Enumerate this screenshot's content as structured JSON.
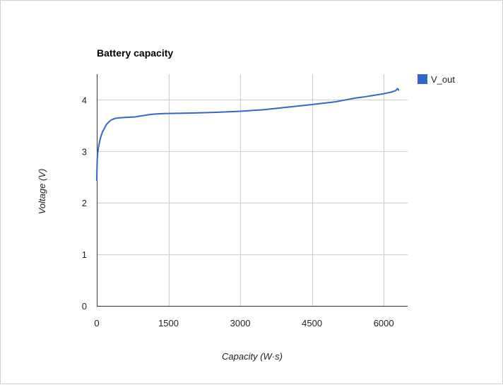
{
  "chart_data": {
    "type": "line",
    "title": "Battery capacity",
    "xlabel": "Capacity (W·s)",
    "ylabel": "Voltage (V)",
    "xlim": [
      0,
      6500
    ],
    "ylim": [
      0,
      4.5
    ],
    "x_ticks": [
      0,
      1500,
      3000,
      4500,
      6000
    ],
    "x_tick_labels": [
      "0",
      "1500",
      "3000",
      "4500",
      "6000"
    ],
    "y_ticks": [
      0,
      1,
      2,
      3,
      4
    ],
    "y_tick_labels": [
      "0",
      "1",
      "2",
      "3",
      "4"
    ],
    "grid": true,
    "legend_position": "right",
    "series": [
      {
        "name": "V_out",
        "color": "#3366cc",
        "points": [
          [
            0,
            2.44
          ],
          [
            5,
            2.7
          ],
          [
            10,
            2.85
          ],
          [
            20,
            2.98
          ],
          [
            40,
            3.1
          ],
          [
            60,
            3.2
          ],
          [
            90,
            3.3
          ],
          [
            120,
            3.38
          ],
          [
            160,
            3.45
          ],
          [
            200,
            3.52
          ],
          [
            250,
            3.57
          ],
          [
            300,
            3.61
          ],
          [
            350,
            3.63
          ],
          [
            400,
            3.645
          ],
          [
            500,
            3.655
          ],
          [
            600,
            3.66
          ],
          [
            700,
            3.665
          ],
          [
            800,
            3.67
          ],
          [
            900,
            3.685
          ],
          [
            1000,
            3.7
          ],
          [
            1100,
            3.715
          ],
          [
            1200,
            3.725
          ],
          [
            1400,
            3.735
          ],
          [
            1700,
            3.74
          ],
          [
            2000,
            3.745
          ],
          [
            2500,
            3.76
          ],
          [
            3000,
            3.78
          ],
          [
            3500,
            3.81
          ],
          [
            4000,
            3.86
          ],
          [
            4500,
            3.91
          ],
          [
            5000,
            3.965
          ],
          [
            5200,
            4.0
          ],
          [
            5400,
            4.035
          ],
          [
            5600,
            4.06
          ],
          [
            5800,
            4.09
          ],
          [
            6000,
            4.12
          ],
          [
            6150,
            4.15
          ],
          [
            6250,
            4.18
          ],
          [
            6270,
            4.2
          ],
          [
            6285,
            4.22
          ],
          [
            6300,
            4.21
          ],
          [
            6310,
            4.19
          ]
        ]
      }
    ]
  }
}
